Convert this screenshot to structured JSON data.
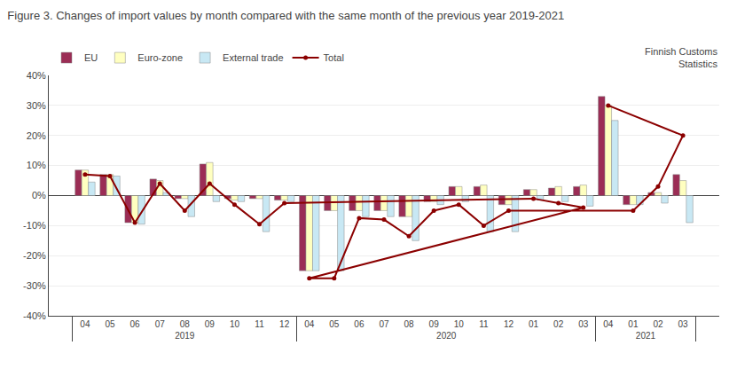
{
  "chart_data": {
    "type": "bar",
    "title": "Figure 3. Changes of import values by month compared with the same month of the previous year 2019-2021",
    "categories": [
      "04",
      "05",
      "06",
      "07",
      "08",
      "09",
      "10",
      "11",
      "12",
      "01",
      "02",
      "03",
      "04",
      "05",
      "06",
      "07",
      "08",
      "09",
      "10",
      "11",
      "12",
      "01",
      "02",
      "03",
      "04"
    ],
    "group_labels": [
      "2019",
      "2019",
      "2019",
      "2019",
      "2019",
      "2019",
      "2019",
      "2019",
      "2019",
      "2020",
      "2020",
      "2020",
      "2020",
      "2020",
      "2020",
      "2020",
      "2020",
      "2020",
      "2020",
      "2020",
      "2020",
      "2021",
      "2021",
      "2021",
      "2021"
    ],
    "series": [
      {
        "name": "EU",
        "type": "bar",
        "color": "#9B2D55",
        "values": [
          8.5,
          7.0,
          -9.0,
          5.5,
          -1.0,
          10.5,
          -1.0,
          -1.0,
          -1.5,
          2.0,
          2.5,
          3.0,
          -25.0,
          -5.0,
          -5.0,
          -5.0,
          -7.0,
          -2.0,
          3.0,
          3.0,
          -3.0,
          -3.0,
          1.0,
          7.0,
          33.0
        ]
      },
      {
        "name": "Euro-zone",
        "type": "bar",
        "color": "#FFFFC0",
        "values": [
          8.5,
          7.0,
          -9.0,
          5.0,
          -1.0,
          11.0,
          -1.5,
          -1.0,
          -1.5,
          2.0,
          3.0,
          3.5,
          -25.0,
          -5.0,
          -5.0,
          -5.0,
          -7.0,
          -2.0,
          3.0,
          3.5,
          -3.0,
          -3.0,
          1.0,
          5.0,
          30.0
        ]
      },
      {
        "name": "External trade",
        "type": "bar",
        "color": "#C8E8F4",
        "values": [
          4.5,
          6.5,
          -9.5,
          1.0,
          -7.0,
          -2.0,
          -2.0,
          -12.0,
          -2.0,
          -1.5,
          -2.0,
          -3.5,
          -25.0,
          -25.0,
          -7.0,
          -7.0,
          -15.0,
          -3.0,
          -2.0,
          -12.0,
          -12.0,
          -3.0,
          -2.5,
          -9.0,
          25.0
        ]
      },
      {
        "name": "Total",
        "type": "line",
        "color": "#8B0000",
        "marker": "circle",
        "values": [
          7.0,
          6.5,
          -9.0,
          4.0,
          -5.0,
          4.0,
          -3.0,
          -9.5,
          -2.5,
          -1.0,
          -2.5,
          -4.0,
          -27.5,
          -27.5,
          -7.5,
          -8.0,
          -13.5,
          -5.0,
          -3.0,
          -10.0,
          -5.0,
          -5.0,
          3.0,
          20.0,
          30.0
        ]
      }
    ],
    "ylim": [
      -40,
      40
    ],
    "yticks": [
      {
        "value": -40,
        "label": "-40%"
      },
      {
        "value": -30,
        "label": "-30%"
      },
      {
        "value": -20,
        "label": "-20%"
      },
      {
        "value": -10,
        "label": "-10%"
      },
      {
        "value": 0,
        "label": "0%"
      },
      {
        "value": 10,
        "label": "10%"
      },
      {
        "value": 20,
        "label": "20%"
      },
      {
        "value": 30,
        "label": "30%"
      },
      {
        "value": 40,
        "label": "40%"
      }
    ],
    "grid": true,
    "legend": "upper left",
    "annotations": [
      "Finnish Customs\nStatistics"
    ]
  }
}
